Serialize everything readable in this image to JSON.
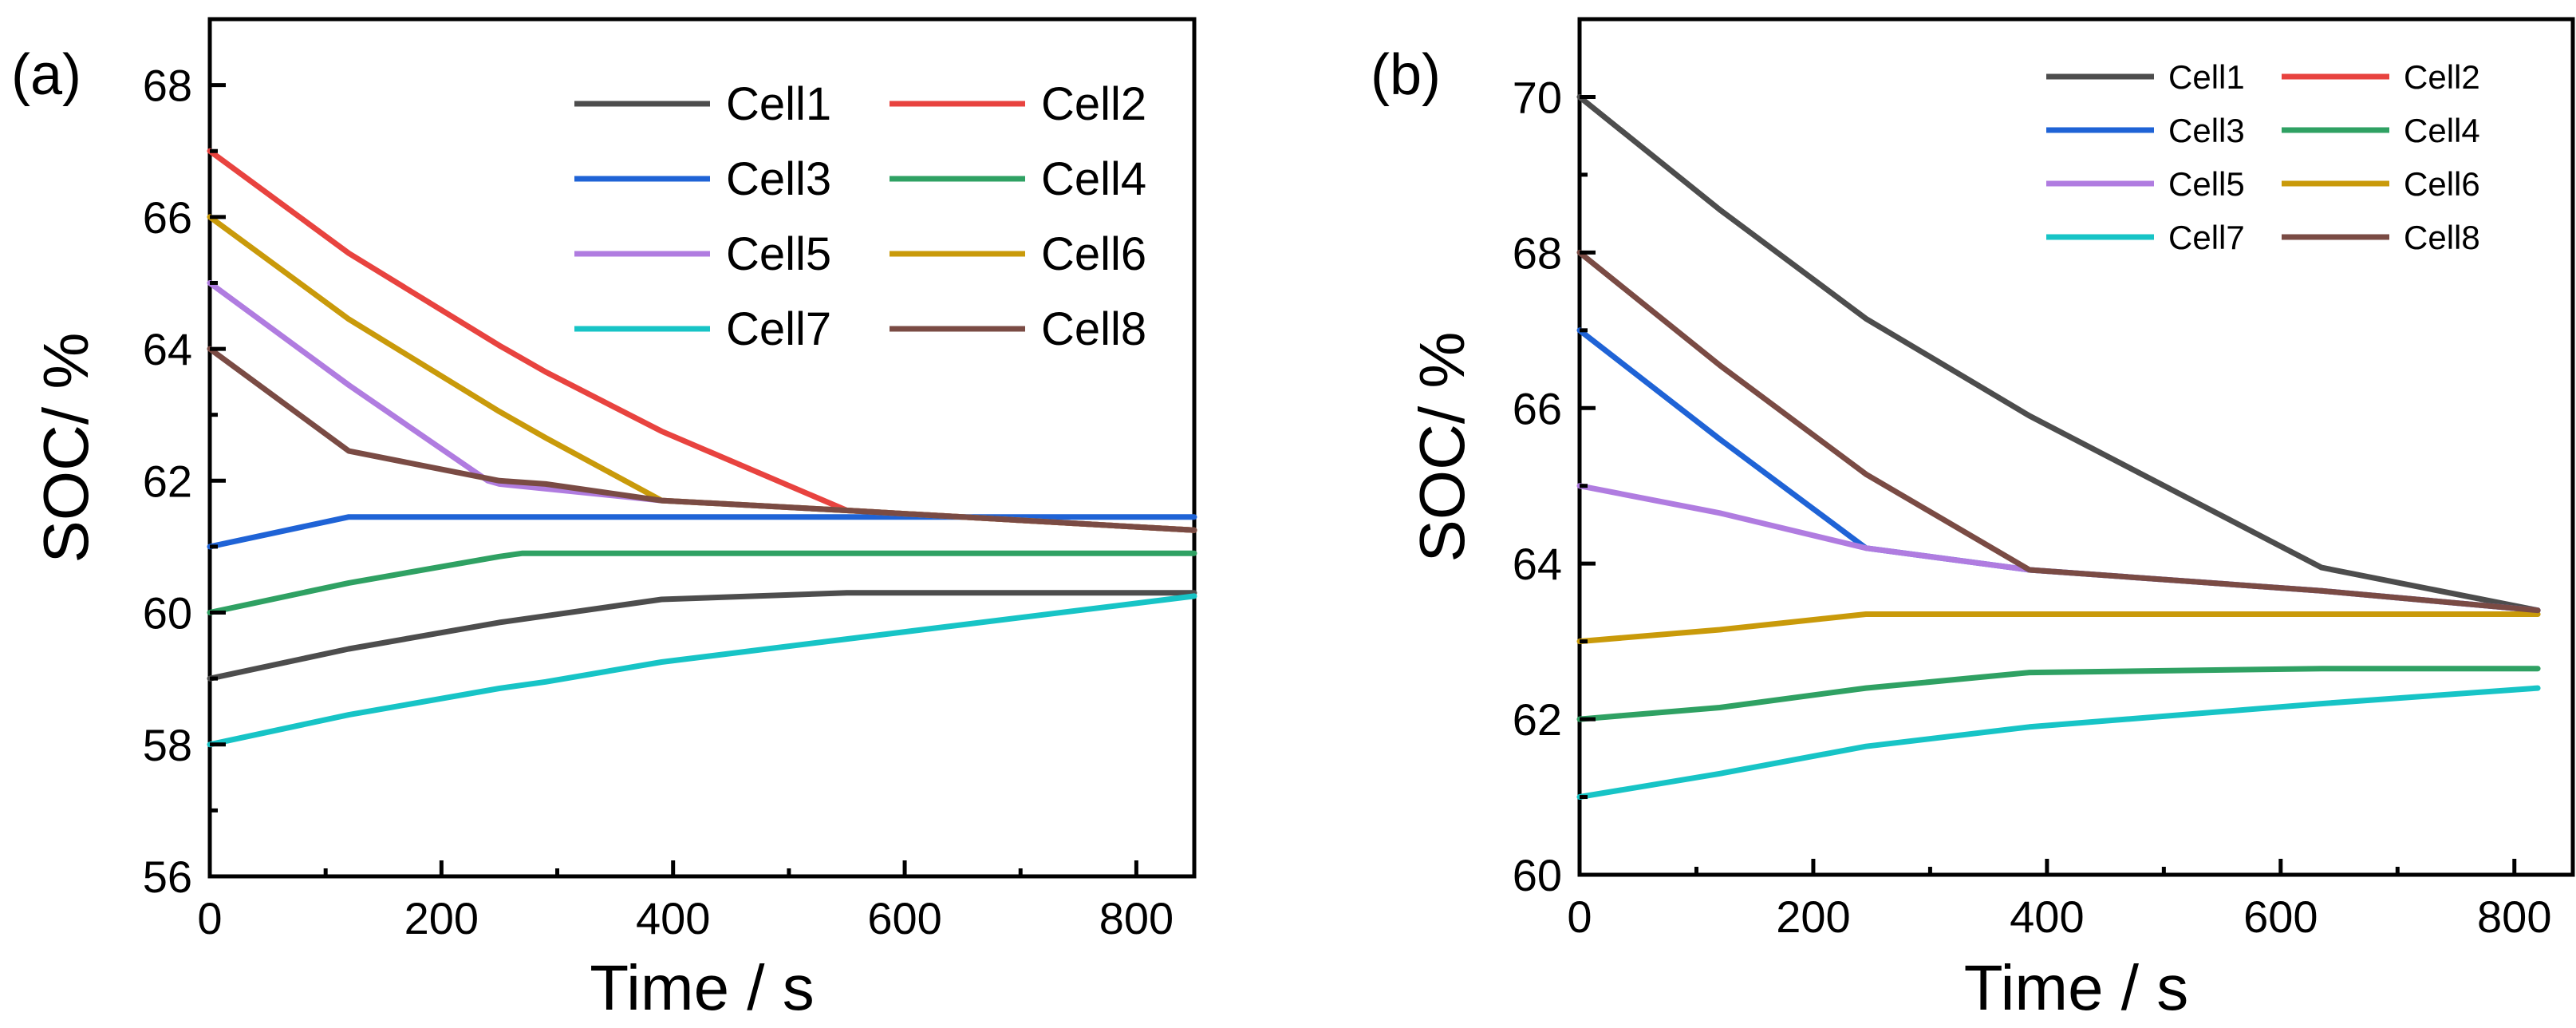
{
  "colors": {
    "Cell1": "#4d4d4d",
    "Cell2": "#e8433f",
    "Cell3": "#1f63d6",
    "Cell4": "#2fa163",
    "Cell5": "#b07ce0",
    "Cell6": "#c99a0a",
    "Cell7": "#17c4c6",
    "Cell8": "#7a4b44"
  },
  "chart_data": [
    {
      "panel": "(a)",
      "type": "line",
      "xlabel": "Time / s",
      "ylabel": "SOC/ %",
      "xlim": [
        0,
        850
      ],
      "ylim": [
        56,
        69
      ],
      "xticks": [
        0,
        200,
        400,
        600,
        800
      ],
      "yticks": [
        56,
        58,
        60,
        62,
        64,
        66,
        68
      ],
      "legend": {
        "placement": "top-right",
        "columns": 2
      },
      "series": [
        {
          "name": "Cell1",
          "x": [
            0,
            120,
            250,
            290,
            390,
            550,
            850
          ],
          "y": [
            59,
            59.45,
            59.85,
            59.95,
            60.2,
            60.3,
            60.3
          ]
        },
        {
          "name": "Cell2",
          "x": [
            0,
            120,
            250,
            290,
            390,
            550,
            850
          ],
          "y": [
            67,
            65.45,
            64.05,
            63.65,
            62.75,
            61.55,
            61.25
          ]
        },
        {
          "name": "Cell3",
          "x": [
            0,
            120,
            250,
            390,
            550,
            850
          ],
          "y": [
            61,
            61.45,
            61.45,
            61.45,
            61.45,
            61.45
          ]
        },
        {
          "name": "Cell4",
          "x": [
            0,
            120,
            250,
            270,
            390,
            550,
            850
          ],
          "y": [
            60,
            60.45,
            60.85,
            60.9,
            60.9,
            60.9,
            60.9
          ]
        },
        {
          "name": "Cell5",
          "x": [
            0,
            120,
            240,
            250,
            390,
            550,
            850
          ],
          "y": [
            65,
            63.45,
            62,
            61.95,
            61.7,
            61.55,
            61.25
          ]
        },
        {
          "name": "Cell6",
          "x": [
            0,
            120,
            250,
            290,
            390,
            550,
            850
          ],
          "y": [
            66,
            64.45,
            63.05,
            62.65,
            61.7,
            61.55,
            61.25
          ]
        },
        {
          "name": "Cell7",
          "x": [
            0,
            120,
            250,
            290,
            390,
            550,
            850
          ],
          "y": [
            58,
            58.45,
            58.85,
            58.95,
            59.25,
            59.6,
            60.25
          ]
        },
        {
          "name": "Cell8",
          "x": [
            0,
            120,
            250,
            290,
            390,
            550,
            850
          ],
          "y": [
            64,
            62.45,
            62,
            61.95,
            61.7,
            61.55,
            61.25
          ]
        }
      ]
    },
    {
      "panel": "(b)",
      "type": "line",
      "xlabel": "Time / s",
      "ylabel": "SOC/ %",
      "xlim": [
        0,
        850
      ],
      "ylim": [
        60,
        71
      ],
      "xticks": [
        0,
        200,
        400,
        600,
        800
      ],
      "yticks": [
        60,
        62,
        64,
        66,
        68,
        70
      ],
      "legend": {
        "placement": "top-right",
        "columns": 2
      },
      "series": [
        {
          "name": "Cell1",
          "x": [
            0,
            120,
            245,
            385,
            635,
            820
          ],
          "y": [
            70,
            68.55,
            67.15,
            65.9,
            63.95,
            63.4
          ]
        },
        {
          "name": "Cell2",
          "x": [
            0,
            820
          ],
          "y": [
            null,
            null
          ]
        },
        {
          "name": "Cell3",
          "x": [
            0,
            120,
            245,
            385,
            635,
            820
          ],
          "y": [
            67,
            65.6,
            64.2,
            63.92,
            63.65,
            63.4
          ]
        },
        {
          "name": "Cell4",
          "x": [
            0,
            120,
            245,
            385,
            635,
            820
          ],
          "y": [
            62,
            62.15,
            62.4,
            62.6,
            62.65,
            62.65
          ]
        },
        {
          "name": "Cell5",
          "x": [
            0,
            120,
            245,
            385,
            635,
            820
          ],
          "y": [
            65,
            64.65,
            64.2,
            63.92,
            63.65,
            63.4
          ]
        },
        {
          "name": "Cell6",
          "x": [
            0,
            120,
            245,
            385,
            635,
            820
          ],
          "y": [
            63,
            63.15,
            63.35,
            63.35,
            63.35,
            63.35
          ]
        },
        {
          "name": "Cell7",
          "x": [
            0,
            120,
            245,
            385,
            635,
            820
          ],
          "y": [
            61,
            61.3,
            61.65,
            61.9,
            62.2,
            62.4
          ]
        },
        {
          "name": "Cell8",
          "x": [
            0,
            120,
            245,
            385,
            635,
            820
          ],
          "y": [
            68,
            66.55,
            65.15,
            63.92,
            63.65,
            63.4
          ]
        }
      ]
    }
  ]
}
